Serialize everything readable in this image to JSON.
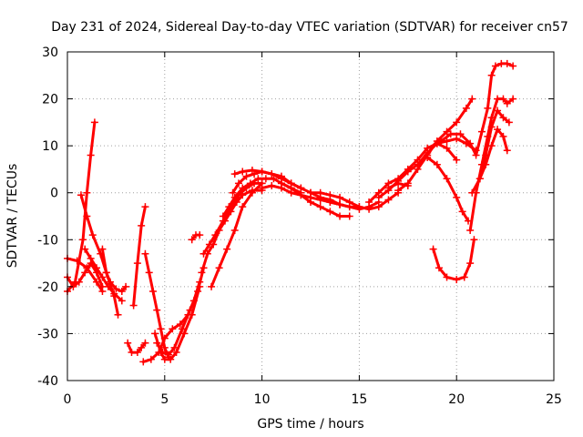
{
  "chart_data": {
    "type": "line",
    "title": "Day 231 of 2024, Sidereal Day-to-day VTEC variation (SDTVAR) for receiver cn57",
    "xlabel": "GPS time / hours",
    "ylabel": "SDTVAR / TECUs",
    "xlim": [
      0,
      25
    ],
    "ylim": [
      -40,
      30
    ],
    "xticks": [
      0,
      5,
      10,
      15,
      20,
      25
    ],
    "yticks": [
      -40,
      -30,
      -20,
      -10,
      0,
      10,
      20,
      30
    ],
    "xtick_labels": [
      "0",
      "5",
      "10",
      "15",
      "20",
      "25"
    ],
    "ytick_labels": [
      "-40",
      "-30",
      "-20",
      "-10",
      "0",
      "10",
      "20",
      "30"
    ],
    "grid": true,
    "legend": "none",
    "marker": "plus",
    "color": "#ff0000",
    "series": [
      {
        "name": "track-1",
        "x": [
          0.0,
          0.4,
          0.8,
          1.0,
          1.2,
          1.4
        ],
        "y": [
          -21,
          -19,
          -10,
          0,
          8,
          15
        ]
      },
      {
        "name": "track-2",
        "x": [
          0.0,
          0.5,
          1.0,
          1.5,
          1.8
        ],
        "y": [
          -14,
          -14.5,
          -16,
          -19,
          -21
        ]
      },
      {
        "name": "track-3",
        "x": [
          0.0,
          0.3,
          0.6,
          0.9,
          1.2,
          1.5,
          1.8
        ],
        "y": [
          -18,
          -20,
          -19,
          -17,
          -15,
          -17,
          -20
        ]
      },
      {
        "name": "track-4",
        "x": [
          0.7,
          1.0,
          1.3,
          1.7,
          2.0,
          2.4,
          2.6
        ],
        "y": [
          -0.5,
          -5,
          -9,
          -13,
          -17,
          -22,
          -26
        ]
      },
      {
        "name": "track-5",
        "x": [
          0.9,
          1.2,
          1.5,
          1.8,
          2.1,
          2.4,
          2.8
        ],
        "y": [
          -12,
          -14,
          -16,
          -18,
          -20,
          -21.5,
          -23
        ]
      },
      {
        "name": "track-6",
        "x": [
          1.8,
          2.0,
          2.2,
          2.5,
          2.8,
          3.0
        ],
        "y": [
          -12,
          -17,
          -19,
          -20.5,
          -21,
          -20
        ]
      },
      {
        "name": "track-7",
        "x": [
          3.1,
          3.3,
          3.6,
          3.8,
          4.0
        ],
        "y": [
          -32,
          -34,
          -34,
          -33,
          -32
        ]
      },
      {
        "name": "track-8",
        "x": [
          3.4,
          3.6,
          3.8,
          4.0
        ],
        "y": [
          -24,
          -15,
          -7,
          -3
        ]
      },
      {
        "name": "track-9",
        "x": [
          4.0,
          4.2,
          4.4,
          4.6,
          4.8,
          5.0,
          5.2
        ],
        "y": [
          -13,
          -17,
          -21,
          -25,
          -29,
          -33,
          -35
        ]
      },
      {
        "name": "track-10",
        "x": [
          3.9,
          4.3,
          4.7,
          5.0,
          5.4,
          5.8,
          6.2,
          6.5,
          6.8
        ],
        "y": [
          -36,
          -35.5,
          -34,
          -31,
          -29,
          -28,
          -26,
          -23,
          -19
        ]
      },
      {
        "name": "track-11",
        "x": [
          4.5,
          4.8,
          5.0,
          5.3,
          5.6,
          6.0,
          6.4,
          6.8
        ],
        "y": [
          -30,
          -34,
          -35.5,
          -35.5,
          -34,
          -30,
          -26,
          -20
        ]
      },
      {
        "name": "track-12",
        "x": [
          4.6,
          4.9,
          5.2,
          5.5,
          5.9,
          6.3,
          6.7,
          7.0
        ],
        "y": [
          -32,
          -34,
          -34.5,
          -33,
          -29,
          -25,
          -21,
          -16
        ]
      },
      {
        "name": "track-13",
        "x": [
          6.4,
          6.6,
          6.8
        ],
        "y": [
          -10,
          -9,
          -9
        ]
      },
      {
        "name": "track-14",
        "x": [
          6.9,
          7.2,
          7.5,
          7.8,
          8.1,
          8.4,
          8.7,
          9.0,
          9.5,
          10.0
        ],
        "y": [
          -17,
          -13,
          -11,
          -8,
          -6,
          -4,
          -2,
          -0.5,
          0.5,
          0.5
        ]
      },
      {
        "name": "track-15",
        "x": [
          7.0,
          7.3,
          7.6,
          8.0,
          8.4,
          8.8,
          9.2,
          9.6,
          10.0
        ],
        "y": [
          -13,
          -11,
          -9,
          -6,
          -3,
          -0.5,
          1,
          2,
          2
        ]
      },
      {
        "name": "track-16",
        "x": [
          7.4,
          7.8,
          8.2,
          8.6,
          9.0,
          9.5,
          10.0
        ],
        "y": [
          -20,
          -16,
          -12,
          -8,
          -3,
          0,
          2
        ]
      },
      {
        "name": "track-17",
        "x": [
          8.0,
          8.3,
          8.6,
          9.0,
          9.4,
          9.8,
          10.2,
          10.6,
          11.0,
          11.5,
          12.0
        ],
        "y": [
          -5,
          -3,
          -1,
          1,
          2,
          3,
          3,
          3,
          2,
          1,
          0
        ]
      },
      {
        "name": "track-18",
        "x": [
          8.5,
          8.8,
          9.2,
          9.6,
          10.0,
          10.5,
          11.0,
          11.5,
          12.0
        ],
        "y": [
          0,
          2,
          3.5,
          4,
          4.5,
          4,
          3,
          2,
          1
        ]
      },
      {
        "name": "track-19",
        "x": [
          8.6,
          9.0,
          9.5,
          10.0,
          10.5,
          11.0,
          11.5,
          12.0,
          12.5,
          13.0,
          13.5,
          14.0
        ],
        "y": [
          4,
          4.5,
          4.8,
          4.5,
          4,
          3.5,
          2,
          1,
          0,
          -1,
          -2,
          -2.5
        ]
      },
      {
        "name": "track-20",
        "x": [
          10.0,
          10.5,
          11.0,
          11.5,
          12.0,
          12.5,
          13.0,
          13.5,
          14.0,
          14.5,
          15.0
        ],
        "y": [
          1,
          1.5,
          1,
          0,
          -0.5,
          -1,
          -1.5,
          -2,
          -2.5,
          -3,
          -3
        ]
      },
      {
        "name": "track-21",
        "x": [
          11.0,
          11.5,
          12.0,
          12.5,
          13.0,
          13.5,
          14.0,
          14.5
        ],
        "y": [
          2,
          1,
          -0.5,
          -2,
          -3,
          -4,
          -5,
          -5
        ]
      },
      {
        "name": "track-22",
        "x": [
          12.5,
          13.0,
          13.5,
          14.0,
          14.5,
          15.0,
          15.5,
          16.0,
          16.5,
          17.0
        ],
        "y": [
          0,
          0,
          -0.5,
          -1,
          -2,
          -3,
          -3.5,
          -3,
          -1.5,
          0
        ]
      },
      {
        "name": "track-23",
        "x": [
          13.0,
          13.5,
          14.0,
          14.5,
          15.0,
          15.5,
          16.0
        ],
        "y": [
          -1,
          -1.5,
          -2.5,
          -3,
          -3.5,
          -3,
          -2
        ]
      },
      {
        "name": "track-24",
        "x": [
          15.5,
          16.0,
          16.5,
          17.0,
          17.5,
          18.0,
          18.5,
          19.0,
          19.5,
          20.0
        ],
        "y": [
          -2,
          0,
          2,
          3,
          5,
          7,
          9.5,
          10.5,
          9.5,
          7
        ]
      },
      {
        "name": "track-25",
        "x": [
          16.0,
          16.5,
          17.0,
          17.5,
          18.0,
          18.5,
          19.0,
          19.5,
          20.0,
          20.5,
          21.0
        ],
        "y": [
          -1,
          0.5,
          2.5,
          4.5,
          6,
          8.5,
          10.5,
          11,
          11.5,
          10.5,
          9
        ]
      },
      {
        "name": "track-26",
        "x": [
          16.5,
          17.0,
          17.5
        ],
        "y": [
          1,
          2,
          1.5
        ]
      },
      {
        "name": "track-27",
        "x": [
          17.0,
          17.5,
          18.0,
          18.5,
          19.0,
          19.5,
          20.0,
          20.5,
          20.8
        ],
        "y": [
          0.5,
          2,
          5,
          8,
          11,
          13,
          15,
          18,
          20
        ]
      },
      {
        "name": "track-28",
        "x": [
          18.5,
          19.0,
          19.5,
          20.0,
          20.3,
          20.6
        ],
        "y": [
          7.5,
          6,
          3,
          -1,
          -4,
          -6
        ]
      },
      {
        "name": "track-29",
        "x": [
          18.8,
          19.1,
          19.5,
          20.0,
          20.4,
          20.7,
          20.9
        ],
        "y": [
          -12,
          -16,
          -18,
          -18.5,
          -18,
          -15,
          -10
        ]
      },
      {
        "name": "track-30",
        "x": [
          19.2,
          19.7,
          20.2,
          20.7,
          21.0,
          21.3,
          21.6,
          21.8,
          22.0,
          22.3,
          22.6,
          22.9
        ],
        "y": [
          11,
          12.5,
          12.5,
          10.5,
          8,
          13,
          18,
          25,
          27,
          27.5,
          27.5,
          27
        ]
      },
      {
        "name": "track-31",
        "x": [
          20.7,
          21.0,
          21.3,
          21.6,
          21.8,
          22.1,
          22.4,
          22.6,
          22.9
        ],
        "y": [
          -8,
          0,
          6,
          12,
          16,
          20,
          20,
          19,
          20
        ]
      },
      {
        "name": "track-32",
        "x": [
          21.2,
          21.5,
          21.8,
          22.1,
          22.4,
          22.7
        ],
        "y": [
          3,
          8,
          14,
          17.5,
          16,
          15
        ]
      },
      {
        "name": "track-33",
        "x": [
          20.8,
          21.2,
          21.5,
          21.8,
          22.1,
          22.4,
          22.6
        ],
        "y": [
          0,
          3,
          6,
          10,
          13.5,
          12,
          9
        ]
      }
    ]
  }
}
